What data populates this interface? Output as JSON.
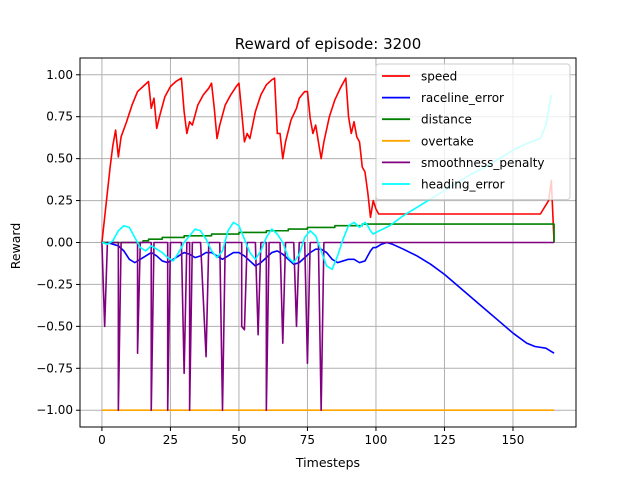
{
  "chart_data": {
    "type": "line",
    "title": "Reward of episode: 3200",
    "xlabel": "Timesteps",
    "ylabel": "Reward",
    "xlim": [
      -8,
      173
    ],
    "ylim": [
      -1.1,
      1.1
    ],
    "xticks": [
      0,
      25,
      50,
      75,
      100,
      125,
      150
    ],
    "yticks": [
      -1.0,
      -0.75,
      -0.5,
      -0.25,
      0.0,
      0.25,
      0.5,
      0.75,
      1.0
    ],
    "ytick_labels": [
      "−1.00",
      "−0.75",
      "−0.50",
      "−0.25",
      "0.00",
      "0.25",
      "0.50",
      "0.75",
      "1.00"
    ],
    "grid": true,
    "legend_position": "top-right",
    "series": [
      {
        "name": "speed",
        "color": "#ff0000",
        "points": [
          [
            0,
            0.0
          ],
          [
            1,
            0.15
          ],
          [
            2,
            0.3
          ],
          [
            3,
            0.45
          ],
          [
            4,
            0.58
          ],
          [
            5,
            0.67
          ],
          [
            6,
            0.51
          ],
          [
            7,
            0.63
          ],
          [
            9,
            0.72
          ],
          [
            11,
            0.82
          ],
          [
            13,
            0.9
          ],
          [
            15,
            0.93
          ],
          [
            17,
            0.96
          ],
          [
            18,
            0.8
          ],
          [
            19,
            0.86
          ],
          [
            20,
            0.68
          ],
          [
            21,
            0.75
          ],
          [
            23,
            0.87
          ],
          [
            25,
            0.93
          ],
          [
            27,
            0.96
          ],
          [
            29,
            0.98
          ],
          [
            30,
            0.78
          ],
          [
            31,
            0.65
          ],
          [
            32,
            0.72
          ],
          [
            33,
            0.7
          ],
          [
            35,
            0.82
          ],
          [
            37,
            0.88
          ],
          [
            39,
            0.92
          ],
          [
            40,
            0.95
          ],
          [
            41,
            0.8
          ],
          [
            42,
            0.62
          ],
          [
            43,
            0.7
          ],
          [
            45,
            0.82
          ],
          [
            47,
            0.88
          ],
          [
            49,
            0.93
          ],
          [
            50,
            0.95
          ],
          [
            51,
            0.78
          ],
          [
            52,
            0.6
          ],
          [
            53,
            0.65
          ],
          [
            54,
            0.62
          ],
          [
            56,
            0.78
          ],
          [
            58,
            0.88
          ],
          [
            60,
            0.94
          ],
          [
            62,
            0.97
          ],
          [
            63,
            0.98
          ],
          [
            64,
            0.65
          ],
          [
            65,
            0.65
          ],
          [
            66,
            0.5
          ],
          [
            67,
            0.6
          ],
          [
            69,
            0.73
          ],
          [
            71,
            0.8
          ],
          [
            72,
            0.86
          ],
          [
            73,
            0.88
          ],
          [
            74,
            0.9
          ],
          [
            75,
            0.9
          ],
          [
            76,
            0.74
          ],
          [
            77,
            0.65
          ],
          [
            78,
            0.7
          ],
          [
            79,
            0.6
          ],
          [
            80,
            0.5
          ],
          [
            81,
            0.6
          ],
          [
            83,
            0.75
          ],
          [
            85,
            0.85
          ],
          [
            87,
            0.92
          ],
          [
            88,
            0.95
          ],
          [
            89,
            0.98
          ],
          [
            90,
            0.75
          ],
          [
            91,
            0.65
          ],
          [
            92,
            0.72
          ],
          [
            93,
            0.63
          ],
          [
            94,
            0.6
          ],
          [
            95,
            0.45
          ],
          [
            96,
            0.42
          ],
          [
            97,
            0.3
          ],
          [
            98,
            0.15
          ],
          [
            99,
            0.25
          ],
          [
            100,
            0.2
          ],
          [
            101,
            0.17
          ],
          [
            110,
            0.17
          ],
          [
            120,
            0.17
          ],
          [
            130,
            0.17
          ],
          [
            140,
            0.17
          ],
          [
            150,
            0.17
          ],
          [
            160,
            0.17
          ],
          [
            163,
            0.25
          ],
          [
            164,
            0.37
          ],
          [
            165,
            0.0
          ]
        ]
      },
      {
        "name": "raceline_error",
        "color": "#0000ff",
        "points": [
          [
            0,
            0.0
          ],
          [
            2,
            0.0
          ],
          [
            4,
            -0.01
          ],
          [
            6,
            -0.02
          ],
          [
            8,
            -0.05
          ],
          [
            10,
            -0.1
          ],
          [
            12,
            -0.12
          ],
          [
            14,
            -0.1
          ],
          [
            16,
            -0.08
          ],
          [
            18,
            -0.06
          ],
          [
            20,
            -0.08
          ],
          [
            22,
            -0.11
          ],
          [
            24,
            -0.12
          ],
          [
            26,
            -0.1
          ],
          [
            28,
            -0.08
          ],
          [
            30,
            -0.06
          ],
          [
            32,
            -0.07
          ],
          [
            34,
            -0.09
          ],
          [
            36,
            -0.08
          ],
          [
            38,
            -0.06
          ],
          [
            40,
            -0.06
          ],
          [
            42,
            -0.08
          ],
          [
            44,
            -0.1
          ],
          [
            46,
            -0.08
          ],
          [
            48,
            -0.06
          ],
          [
            50,
            -0.06
          ],
          [
            52,
            -0.08
          ],
          [
            54,
            -0.11
          ],
          [
            56,
            -0.14
          ],
          [
            58,
            -0.12
          ],
          [
            60,
            -0.09
          ],
          [
            62,
            -0.06
          ],
          [
            64,
            -0.05
          ],
          [
            66,
            -0.07
          ],
          [
            68,
            -0.1
          ],
          [
            70,
            -0.13
          ],
          [
            72,
            -0.12
          ],
          [
            74,
            -0.09
          ],
          [
            76,
            -0.06
          ],
          [
            78,
            -0.04
          ],
          [
            80,
            -0.04
          ],
          [
            82,
            -0.06
          ],
          [
            84,
            -0.1
          ],
          [
            86,
            -0.12
          ],
          [
            88,
            -0.11
          ],
          [
            90,
            -0.1
          ],
          [
            92,
            -0.1
          ],
          [
            94,
            -0.12
          ],
          [
            96,
            -0.11
          ],
          [
            97,
            -0.08
          ],
          [
            98,
            -0.05
          ],
          [
            99,
            -0.03
          ],
          [
            100,
            -0.03
          ],
          [
            102,
            -0.01
          ],
          [
            104,
            0.0
          ],
          [
            106,
            -0.01
          ],
          [
            110,
            -0.04
          ],
          [
            115,
            -0.08
          ],
          [
            120,
            -0.13
          ],
          [
            125,
            -0.19
          ],
          [
            130,
            -0.26
          ],
          [
            135,
            -0.33
          ],
          [
            140,
            -0.4
          ],
          [
            145,
            -0.47
          ],
          [
            150,
            -0.54
          ],
          [
            155,
            -0.6
          ],
          [
            158,
            -0.62
          ],
          [
            162,
            -0.63
          ],
          [
            165,
            -0.66
          ]
        ]
      },
      {
        "name": "distance",
        "color": "#008000",
        "points": [
          [
            0,
            0.0
          ],
          [
            15,
            0.0
          ],
          [
            15,
            0.01
          ],
          [
            17,
            0.01
          ],
          [
            17,
            0.02
          ],
          [
            22,
            0.02
          ],
          [
            22,
            0.03
          ],
          [
            30,
            0.03
          ],
          [
            30,
            0.04
          ],
          [
            40,
            0.04
          ],
          [
            40,
            0.05
          ],
          [
            50,
            0.05
          ],
          [
            50,
            0.06
          ],
          [
            60,
            0.06
          ],
          [
            60,
            0.07
          ],
          [
            68,
            0.07
          ],
          [
            68,
            0.08
          ],
          [
            75,
            0.08
          ],
          [
            75,
            0.09
          ],
          [
            85,
            0.09
          ],
          [
            85,
            0.1
          ],
          [
            95,
            0.1
          ],
          [
            95,
            0.11
          ],
          [
            165,
            0.11
          ],
          [
            165,
            0.0
          ]
        ]
      },
      {
        "name": "overtake",
        "color": "#ffa500",
        "points": [
          [
            0,
            -1.0
          ],
          [
            165,
            -1.0
          ]
        ]
      },
      {
        "name": "smoothness_penalty",
        "color": "#800080",
        "points": [
          [
            0,
            0.0
          ],
          [
            1,
            -0.5
          ],
          [
            2,
            0.0
          ],
          [
            6,
            0.0
          ],
          [
            6,
            -1.0
          ],
          [
            7,
            0.0
          ],
          [
            13,
            0.0
          ],
          [
            13,
            -0.66
          ],
          [
            14,
            0.0
          ],
          [
            18,
            0.0
          ],
          [
            18,
            -1.0
          ],
          [
            19,
            0.0
          ],
          [
            24,
            0.0
          ],
          [
            24,
            -1.0
          ],
          [
            25,
            0.0
          ],
          [
            29,
            0.0
          ],
          [
            30,
            -0.78
          ],
          [
            31,
            0.0
          ],
          [
            32,
            0.0
          ],
          [
            32,
            -1.0
          ],
          [
            33,
            0.0
          ],
          [
            36,
            0.0
          ],
          [
            38,
            -0.68
          ],
          [
            39,
            0.0
          ],
          [
            43,
            0.0
          ],
          [
            44,
            -1.0
          ],
          [
            45,
            0.0
          ],
          [
            51,
            0.0
          ],
          [
            51,
            -0.5
          ],
          [
            52,
            -0.52
          ],
          [
            53,
            0.0
          ],
          [
            56,
            0.0
          ],
          [
            57,
            -0.55
          ],
          [
            58,
            0.0
          ],
          [
            60,
            0.0
          ],
          [
            60,
            -1.0
          ],
          [
            61,
            0.0
          ],
          [
            65,
            0.0
          ],
          [
            66,
            -0.6
          ],
          [
            67,
            0.0
          ],
          [
            70,
            0.0
          ],
          [
            71,
            -0.5
          ],
          [
            72,
            0.0
          ],
          [
            74,
            0.0
          ],
          [
            75,
            -0.72
          ],
          [
            76,
            0.0
          ],
          [
            79,
            0.0
          ],
          [
            80,
            -1.0
          ],
          [
            81,
            0.0
          ],
          [
            165,
            0.0
          ]
        ]
      },
      {
        "name": "heading_error",
        "color": "#00ffff",
        "points": [
          [
            0,
            0.0
          ],
          [
            2,
            -0.01
          ],
          [
            4,
            0.01
          ],
          [
            6,
            0.07
          ],
          [
            8,
            0.1
          ],
          [
            10,
            0.09
          ],
          [
            12,
            0.03
          ],
          [
            14,
            -0.03
          ],
          [
            16,
            -0.05
          ],
          [
            18,
            -0.02
          ],
          [
            20,
            -0.04
          ],
          [
            22,
            -0.06
          ],
          [
            24,
            -0.09
          ],
          [
            26,
            -0.11
          ],
          [
            28,
            -0.06
          ],
          [
            30,
            -0.0
          ],
          [
            32,
            0.04
          ],
          [
            34,
            0.08
          ],
          [
            36,
            0.07
          ],
          [
            38,
            0.02
          ],
          [
            40,
            -0.05
          ],
          [
            42,
            -0.09
          ],
          [
            44,
            -0.05
          ],
          [
            46,
            0.07
          ],
          [
            48,
            0.12
          ],
          [
            50,
            0.1
          ],
          [
            52,
            0.02
          ],
          [
            54,
            -0.06
          ],
          [
            56,
            -0.1
          ],
          [
            58,
            -0.05
          ],
          [
            60,
            0.03
          ],
          [
            62,
            0.08
          ],
          [
            64,
            0.05
          ],
          [
            66,
            0.0
          ],
          [
            68,
            -0.09
          ],
          [
            70,
            -0.12
          ],
          [
            72,
            -0.07
          ],
          [
            74,
            0.03
          ],
          [
            76,
            0.07
          ],
          [
            78,
            0.04
          ],
          [
            80,
            -0.05
          ],
          [
            82,
            -0.14
          ],
          [
            84,
            -0.16
          ],
          [
            86,
            -0.08
          ],
          [
            88,
            0.02
          ],
          [
            90,
            0.1
          ],
          [
            92,
            0.12
          ],
          [
            94,
            0.09
          ],
          [
            96,
            0.12
          ],
          [
            97,
            0.1
          ],
          [
            98,
            0.07
          ],
          [
            99,
            0.05
          ],
          [
            100,
            0.06
          ],
          [
            105,
            0.1
          ],
          [
            110,
            0.16
          ],
          [
            115,
            0.21
          ],
          [
            120,
            0.26
          ],
          [
            125,
            0.31
          ],
          [
            130,
            0.36
          ],
          [
            135,
            0.41
          ],
          [
            140,
            0.45
          ],
          [
            145,
            0.5
          ],
          [
            150,
            0.55
          ],
          [
            155,
            0.59
          ],
          [
            160,
            0.62
          ],
          [
            162,
            0.7
          ],
          [
            164,
            0.88
          ]
        ]
      }
    ]
  }
}
